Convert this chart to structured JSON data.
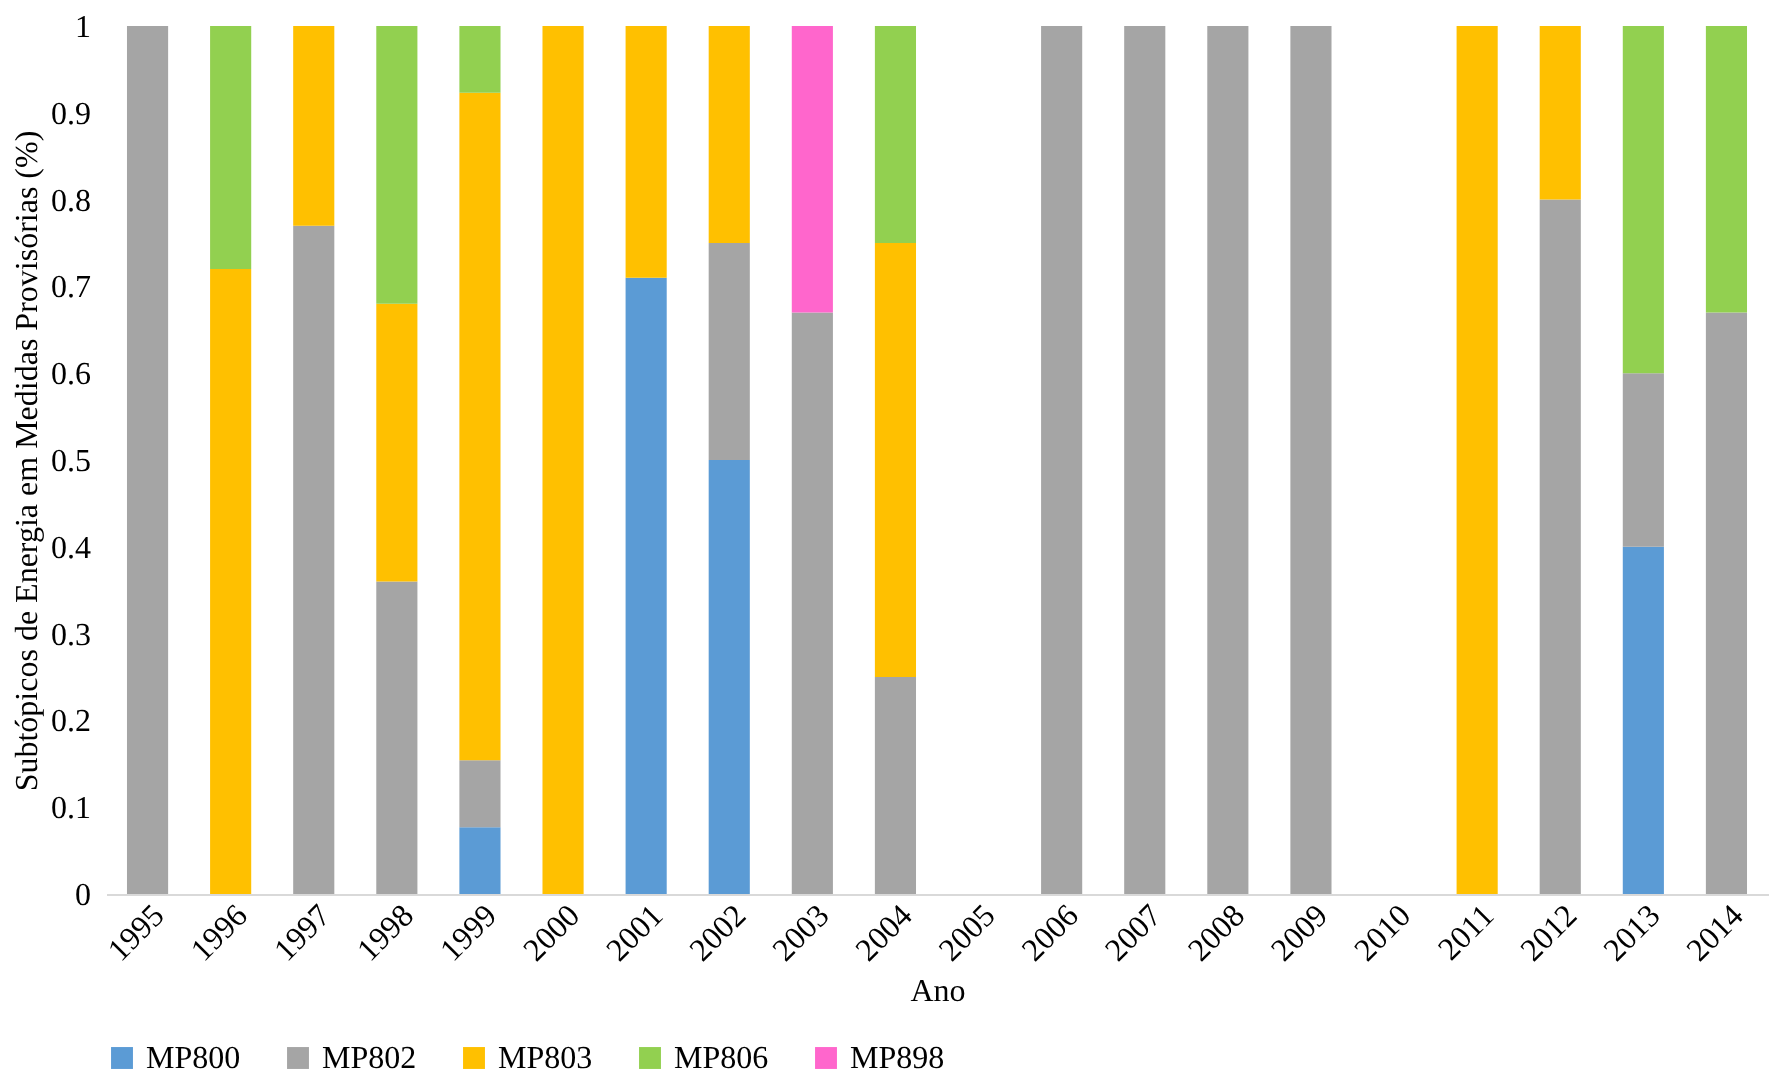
{
  "chart_data": {
    "type": "bar",
    "stacked": true,
    "xlabel": "Ano",
    "ylabel": "Subtópicos de Energia em Medidas Provisórias (%)",
    "categories": [
      "1995",
      "1996",
      "1997",
      "1998",
      "1999",
      "2000",
      "2001",
      "2002",
      "2003",
      "2004",
      "2005",
      "2006",
      "2007",
      "2008",
      "2009",
      "2010",
      "2011",
      "2012",
      "2013",
      "2014"
    ],
    "series": [
      {
        "name": "MP800",
        "color": "#5b9bd5",
        "values": [
          null,
          null,
          null,
          null,
          0.077,
          null,
          0.71,
          0.5,
          null,
          null,
          null,
          null,
          null,
          null,
          null,
          null,
          null,
          null,
          0.4,
          null
        ]
      },
      {
        "name": "MP802",
        "color": "#a5a5a5",
        "values": [
          1,
          null,
          0.77,
          0.36,
          0.077,
          null,
          null,
          0.25,
          0.67,
          0.25,
          null,
          1,
          1,
          1,
          1,
          null,
          null,
          0.8,
          0.2,
          0.67
        ]
      },
      {
        "name": "MP803",
        "color": "#ffc000",
        "values": [
          null,
          0.72,
          0.23,
          0.32,
          0.769,
          1,
          0.29,
          0.25,
          null,
          0.5,
          null,
          null,
          null,
          null,
          null,
          null,
          1,
          0.2,
          null,
          null
        ]
      },
      {
        "name": "MP806",
        "color": "#92d050",
        "values": [
          null,
          0.28,
          null,
          0.32,
          0.077,
          null,
          null,
          null,
          null,
          0.25,
          null,
          null,
          null,
          null,
          null,
          null,
          null,
          null,
          0.4,
          0.33
        ]
      },
      {
        "name": "MP898",
        "color": "#ff66cc",
        "values": [
          null,
          null,
          null,
          null,
          null,
          null,
          null,
          null,
          0.33,
          null,
          null,
          null,
          null,
          null,
          null,
          null,
          null,
          null,
          null,
          null
        ]
      }
    ],
    "ylim": [
      0,
      1
    ],
    "yticks": [
      0,
      0.1,
      0.2,
      0.3,
      0.4,
      0.5,
      0.6,
      0.7,
      0.8,
      0.9,
      1
    ],
    "grid": false,
    "legend": "bottom"
  }
}
